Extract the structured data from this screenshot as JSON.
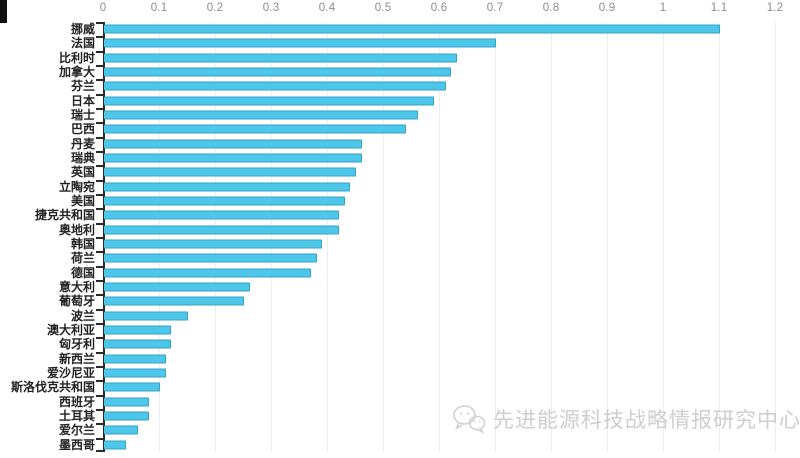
{
  "chart_data": {
    "type": "bar",
    "orientation": "horizontal",
    "title": "",
    "xlabel": "",
    "ylabel": "",
    "xlim": [
      0,
      1.2
    ],
    "grid": true,
    "bar_color": "#4cc7ea",
    "bar_border_color": "#36a2c6",
    "axis_color": "#2a2a2a",
    "tick_label_color": "#8e8e8e",
    "x_ticks": [
      "0",
      "0.1",
      "0.2",
      "0.3",
      "0.4",
      "0.5",
      "0.6",
      "0.7",
      "0.8",
      "0.9",
      "1",
      "1.1",
      "1.2"
    ],
    "categories": [
      "挪威",
      "法国",
      "比利时",
      "加拿大",
      "芬兰",
      "日本",
      "瑞士",
      "巴西",
      "丹麦",
      "瑞典",
      "英国",
      "立陶宛",
      "美国",
      "捷克共和国",
      "奥地利",
      "韩国",
      "荷兰",
      "德国",
      "意大利",
      "葡萄牙",
      "波兰",
      "澳大利亚",
      "匈牙利",
      "新西兰",
      "爱沙尼亚",
      "斯洛伐克共和国",
      "西班牙",
      "土耳其",
      "爱尔兰",
      "墨西哥"
    ],
    "values": [
      1.1,
      0.7,
      0.63,
      0.62,
      0.61,
      0.59,
      0.56,
      0.54,
      0.46,
      0.46,
      0.45,
      0.44,
      0.43,
      0.42,
      0.42,
      0.39,
      0.38,
      0.37,
      0.26,
      0.25,
      0.15,
      0.12,
      0.12,
      0.11,
      0.11,
      0.1,
      0.08,
      0.08,
      0.06,
      0.04
    ]
  },
  "watermark": {
    "text": "先进能源科技战略情报研究中心",
    "icon": "wechat-icon",
    "color": "#c6c6c6"
  }
}
